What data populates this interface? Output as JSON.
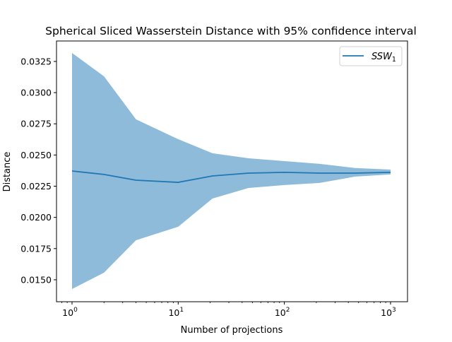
{
  "chart_data": {
    "type": "line",
    "title": "Spherical Sliced Wasserstein Distance with 95% confidence interval",
    "xlabel": "Number of projections",
    "ylabel": "Distance",
    "xscale": "log",
    "xlim": [
      0.714,
      1445
    ],
    "ylim": [
      0.01324,
      0.03414
    ],
    "grid": false,
    "legend_position": "top-right",
    "x": [
      1,
      2,
      4,
      10,
      21,
      46,
      100,
      215,
      464,
      1000
    ],
    "series": [
      {
        "name": "SSW_1",
        "color": "#1f77b4",
        "values": [
          0.02372,
          0.02344,
          0.02298,
          0.02281,
          0.02332,
          0.02355,
          0.02361,
          0.02355,
          0.02355,
          0.02361
        ],
        "ci_upper": [
          0.03318,
          0.03131,
          0.02786,
          0.02627,
          0.02514,
          0.02474,
          0.02451,
          0.02429,
          0.02396,
          0.02383
        ],
        "ci_lower": [
          0.01426,
          0.01557,
          0.01817,
          0.01925,
          0.02151,
          0.02236,
          0.02259,
          0.02276,
          0.02327,
          0.02344
        ],
        "ci_color": "#8fbbda"
      }
    ],
    "legend": {
      "label_main": "SSW",
      "label_sub": "1"
    },
    "yticks": [
      {
        "value": 0.015,
        "label": "0.0150"
      },
      {
        "value": 0.0175,
        "label": "0.0175"
      },
      {
        "value": 0.02,
        "label": "0.0200"
      },
      {
        "value": 0.0225,
        "label": "0.0225"
      },
      {
        "value": 0.025,
        "label": "0.0250"
      },
      {
        "value": 0.0275,
        "label": "0.0275"
      },
      {
        "value": 0.03,
        "label": "0.0300"
      },
      {
        "value": 0.0325,
        "label": "0.0325"
      }
    ],
    "xticks": [
      {
        "value": 1,
        "base": "10",
        "exp": "0"
      },
      {
        "value": 10,
        "base": "10",
        "exp": "1"
      },
      {
        "value": 100,
        "base": "10",
        "exp": "2"
      },
      {
        "value": 1000,
        "base": "10",
        "exp": "3"
      }
    ]
  }
}
